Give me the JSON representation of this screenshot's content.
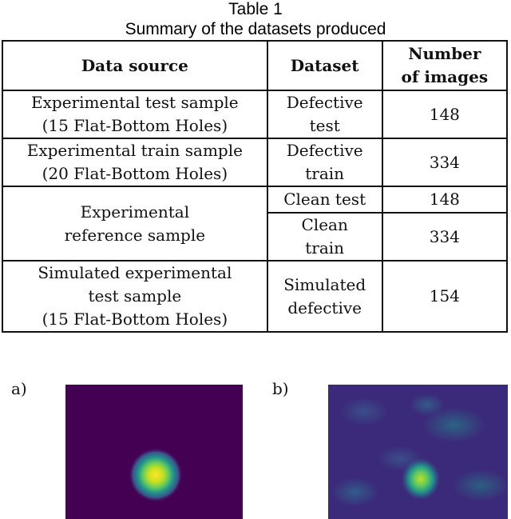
{
  "caption": {
    "label": "Table 1",
    "title": "Summary of the datasets produced"
  },
  "table": {
    "headers": {
      "source": "Data source",
      "dataset": "Dataset",
      "count_line1": "Number",
      "count_line2": "of images"
    },
    "rows": [
      {
        "source": [
          "Experimental test sample",
          "(15 Flat-Bottom Holes)"
        ],
        "dataset": [
          "Defective",
          "test"
        ],
        "count": "148"
      },
      {
        "source": [
          "Experimental train sample",
          "(20 Flat-Bottom Holes)"
        ],
        "dataset": [
          "Defective",
          "train"
        ],
        "count": "334"
      },
      {
        "source": [
          "Experimental",
          "reference sample"
        ],
        "dataset": [
          "Clean test"
        ],
        "count": "148"
      },
      {
        "dataset": [
          "Clean",
          "train"
        ],
        "count": "334"
      },
      {
        "source": [
          "Simulated experimental",
          "test sample",
          "(15 Flat-Bottom Holes)"
        ],
        "dataset": [
          "Simulated",
          "defective"
        ],
        "count": "154"
      }
    ]
  },
  "panels": {
    "a_label": "a)",
    "b_label": "b)"
  },
  "colors": {
    "viridis_dark": "#440154",
    "viridis_blue": "#3b528b",
    "viridis_teal": "#21918c",
    "viridis_green": "#5ec962",
    "viridis_yellow": "#fde725"
  }
}
